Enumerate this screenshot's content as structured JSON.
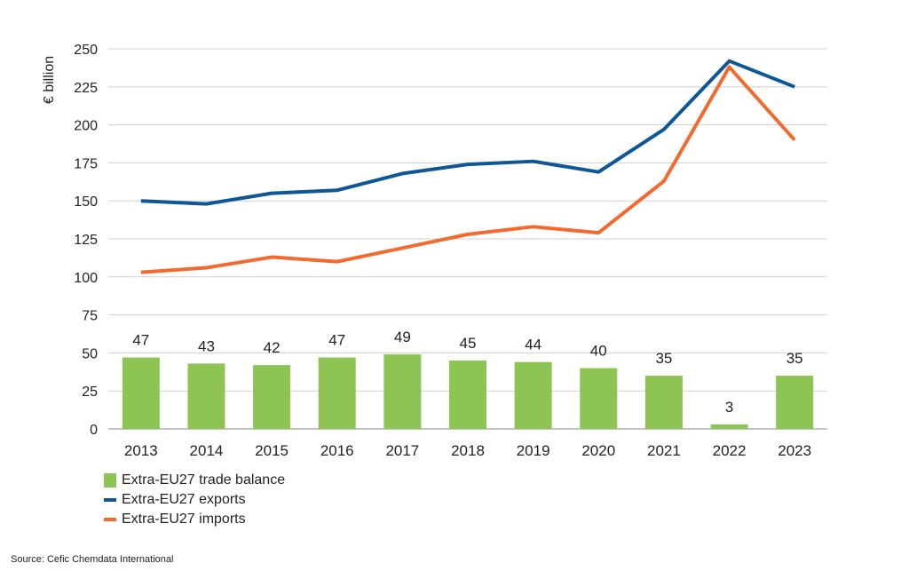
{
  "chart_data": {
    "type": "bar+line",
    "ylabel": "€ billion",
    "ylim": [
      0,
      250
    ],
    "yticks": [
      0,
      25,
      50,
      75,
      100,
      125,
      150,
      175,
      200,
      225,
      250
    ],
    "grid": true,
    "categories": [
      "2013",
      "2014",
      "2015",
      "2016",
      "2017",
      "2018",
      "2019",
      "2020",
      "2021",
      "2022",
      "2023"
    ],
    "series": [
      {
        "name": "Extra-EU27 trade balance",
        "kind": "bar",
        "color": "#8dc454",
        "values": [
          47,
          43,
          42,
          47,
          49,
          45,
          44,
          40,
          35,
          3,
          35
        ],
        "labels": [
          "47",
          "43",
          "42",
          "47",
          "49",
          "45",
          "44",
          "40",
          "35",
          "3",
          "35"
        ]
      },
      {
        "name": "Extra-EU27 exports",
        "kind": "line",
        "color": "#0f5697",
        "values": [
          150,
          148,
          155,
          157,
          168,
          174,
          176,
          169,
          197,
          242,
          225
        ]
      },
      {
        "name": "Extra-EU27 imports",
        "kind": "line",
        "color": "#f26a2e",
        "values": [
          103,
          106,
          113,
          110,
          119,
          128,
          133,
          129,
          163,
          238,
          190
        ]
      }
    ],
    "legend_position": "bottom-left"
  },
  "source": "Source: Cefic Chemdata International"
}
